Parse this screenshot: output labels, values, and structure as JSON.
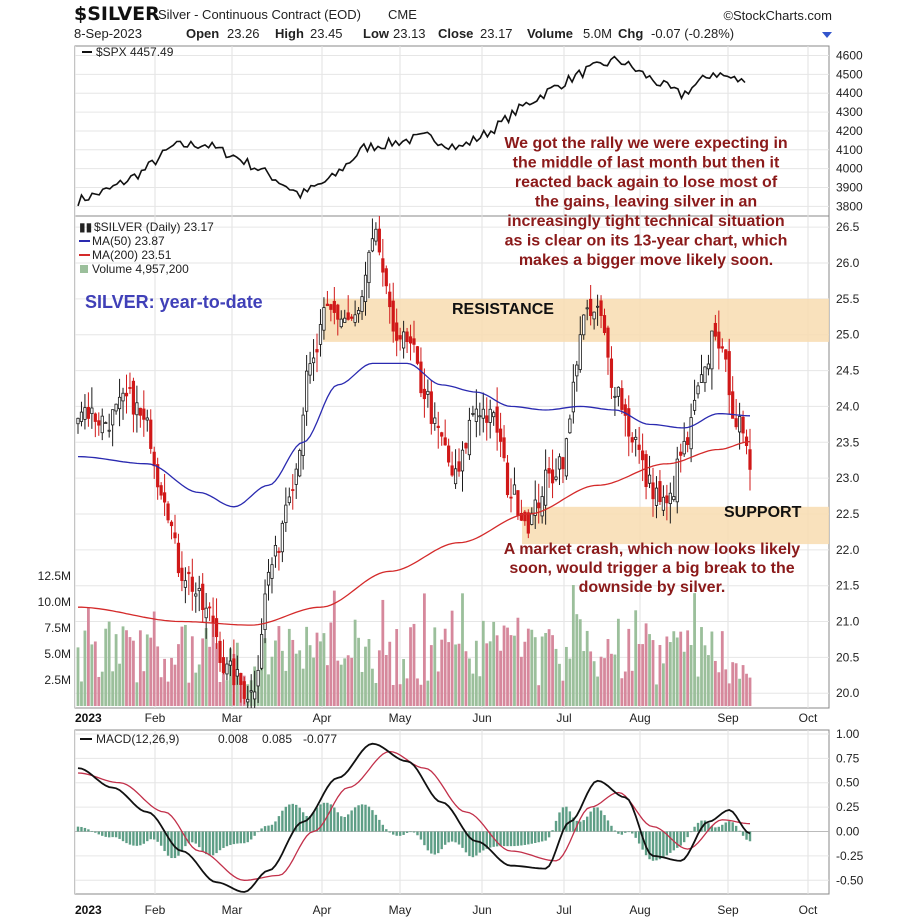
{
  "header": {
    "symbol": "$SILVER",
    "description": "Silver - Continuous Contract (EOD)",
    "exchange": "CME",
    "source": "©StockCharts.com",
    "date": "8-Sep-2023",
    "open_label": "Open",
    "open": "23.26",
    "high_label": "High",
    "high": "23.45",
    "low_label": "Low",
    "low": "23.13",
    "close_label": "Close",
    "close": "23.17",
    "volume_label": "Volume",
    "volume": "5.0M",
    "chg_label": "Chg",
    "chg": "-0.07 (-0.28%)"
  },
  "colors": {
    "up": "#1c1c1c",
    "down": "#d01818",
    "ma50": "#2a2ab0",
    "ma200": "#d42a2a",
    "vol_up": "#9bbf9b",
    "vol_down": "#d6889c",
    "zone": "#f8dcb0",
    "macd": "#111111",
    "signal": "#c2304a",
    "hist": "#5e9e86",
    "annotation": "#8b1a1a"
  },
  "annotations": {
    "top_note": [
      "We got the rally we were expecting in",
      "the middle of last month but then it",
      "reacted back again to lose most of",
      "the gains, leaving silver in an",
      "increasingly tight technical situation",
      "as is clear on its 13-year chart, which",
      "makes a bigger move likely soon."
    ],
    "bottom_note": [
      "A market crash, which now looks likely",
      "soon, would trigger a big break to the",
      "downside by silver."
    ],
    "resistance": "RESISTANCE",
    "support": "SUPPORT",
    "ytd": "SILVER: year-to-date"
  },
  "chart_data": [
    {
      "type": "line",
      "legend": "$SPX 4457.49",
      "y_ticks": [
        "4600",
        "4500",
        "4400",
        "4300",
        "4200",
        "4100",
        "4000",
        "3900",
        "3800"
      ],
      "ylim": [
        3770,
        4640
      ],
      "x": [
        "Jan 3",
        "Jan 10",
        "Jan 20",
        "Feb 1",
        "Feb 10",
        "Feb 20",
        "Mar 1",
        "Mar 13",
        "Mar 20",
        "Apr 1",
        "Apr 15",
        "May 1",
        "May 15",
        "Jun 1",
        "Jun 15",
        "Jul 1",
        "Jul 15",
        "Jul 27",
        "Aug 10",
        "Aug 20",
        "Sep 1",
        "Sep 8"
      ],
      "values": [
        3830,
        3890,
        3980,
        4120,
        4130,
        4060,
        3970,
        3860,
        3950,
        4110,
        4140,
        4170,
        4110,
        4200,
        4330,
        4430,
        4520,
        4580,
        4480,
        4390,
        4510,
        4457
      ]
    },
    {
      "type": "candlestick",
      "legend": {
        "price": "$SILVER (Daily) 23.17",
        "ma50": "MA(50) 23.87",
        "ma200": "MA(200) 23.51",
        "volume": "Volume 4,957,200"
      },
      "y_ticks": [
        "26.5",
        "26.0",
        "25.5",
        "25.0",
        "24.5",
        "24.0",
        "23.5",
        "23.0",
        "22.5",
        "22.0",
        "21.5",
        "21.0",
        "20.5",
        "20.0"
      ],
      "ylim": [
        19.85,
        26.6
      ],
      "volume_ticks": [
        "12.5M",
        "10.0M",
        "7.5M",
        "5.0M",
        "2.5M"
      ],
      "volume_max": 15000000,
      "resistance_zone": [
        24.9,
        25.5
      ],
      "support_zone": [
        22.08,
        22.6
      ],
      "waypoints": [
        [
          0,
          24.0
        ],
        [
          8,
          23.8
        ],
        [
          15,
          24.1
        ],
        [
          20,
          23.7
        ],
        [
          24,
          22.9
        ],
        [
          30,
          21.7
        ],
        [
          38,
          21.1
        ],
        [
          43,
          20.3
        ],
        [
          50,
          20.0
        ],
        [
          56,
          21.8
        ],
        [
          62,
          23.0
        ],
        [
          67,
          24.5
        ],
        [
          72,
          25.3
        ],
        [
          80,
          25.2
        ],
        [
          86,
          26.3
        ],
        [
          91,
          25.1
        ],
        [
          96,
          24.8
        ],
        [
          100,
          24.2
        ],
        [
          104,
          23.6
        ],
        [
          109,
          23.0
        ],
        [
          115,
          24.0
        ],
        [
          120,
          23.8
        ],
        [
          125,
          22.8
        ],
        [
          130,
          22.4
        ],
        [
          136,
          23.0
        ],
        [
          140,
          23.3
        ],
        [
          146,
          25.2
        ],
        [
          150,
          25.3
        ],
        [
          155,
          24.3
        ],
        [
          160,
          23.6
        ],
        [
          165,
          22.9
        ],
        [
          170,
          22.6
        ],
        [
          175,
          23.4
        ],
        [
          180,
          24.3
        ],
        [
          184,
          25.1
        ],
        [
          187,
          24.5
        ],
        [
          190,
          23.8
        ],
        [
          194,
          23.2
        ]
      ],
      "ma50": [
        [
          0,
          23.3
        ],
        [
          20,
          23.2
        ],
        [
          35,
          22.8
        ],
        [
          45,
          22.6
        ],
        [
          55,
          22.9
        ],
        [
          65,
          23.5
        ],
        [
          75,
          24.3
        ],
        [
          85,
          24.6
        ],
        [
          95,
          24.6
        ],
        [
          105,
          24.3
        ],
        [
          115,
          24.2
        ],
        [
          125,
          24.0
        ],
        [
          135,
          23.95
        ],
        [
          145,
          24.0
        ],
        [
          155,
          23.95
        ],
        [
          165,
          23.75
        ],
        [
          175,
          23.7
        ],
        [
          185,
          23.9
        ],
        [
          194,
          23.87
        ]
      ],
      "ma200": [
        [
          0,
          21.2
        ],
        [
          30,
          21.0
        ],
        [
          50,
          20.95
        ],
        [
          70,
          21.2
        ],
        [
          90,
          21.7
        ],
        [
          110,
          22.1
        ],
        [
          130,
          22.5
        ],
        [
          150,
          22.9
        ],
        [
          170,
          23.2
        ],
        [
          185,
          23.4
        ],
        [
          194,
          23.51
        ]
      ]
    },
    {
      "type": "line",
      "legend": {
        "label": "MACD(12,26,9)",
        "macd": "0.008",
        "signal": "0.085",
        "hist": "-0.077"
      },
      "y_ticks": [
        "1.00",
        "0.75",
        "0.50",
        "0.25",
        "0.00",
        "-0.25",
        "-0.50"
      ],
      "ylim": [
        -0.62,
        1.02
      ],
      "macd": [
        [
          0,
          0.65
        ],
        [
          10,
          0.45
        ],
        [
          20,
          0.2
        ],
        [
          30,
          -0.2
        ],
        [
          40,
          -0.52
        ],
        [
          48,
          -0.62
        ],
        [
          55,
          -0.4
        ],
        [
          65,
          0.1
        ],
        [
          75,
          0.55
        ],
        [
          85,
          0.9
        ],
        [
          95,
          0.72
        ],
        [
          105,
          0.3
        ],
        [
          115,
          -0.1
        ],
        [
          125,
          -0.35
        ],
        [
          135,
          -0.38
        ],
        [
          142,
          0.1
        ],
        [
          150,
          0.52
        ],
        [
          158,
          0.35
        ],
        [
          166,
          -0.25
        ],
        [
          174,
          -0.3
        ],
        [
          182,
          0.1
        ],
        [
          188,
          0.22
        ],
        [
          194,
          -0.02
        ]
      ],
      "signal": [
        [
          0,
          0.6
        ],
        [
          12,
          0.5
        ],
        [
          25,
          0.2
        ],
        [
          35,
          -0.2
        ],
        [
          48,
          -0.5
        ],
        [
          58,
          -0.45
        ],
        [
          68,
          0.0
        ],
        [
          78,
          0.45
        ],
        [
          90,
          0.82
        ],
        [
          100,
          0.65
        ],
        [
          112,
          0.2
        ],
        [
          125,
          -0.2
        ],
        [
          138,
          -0.3
        ],
        [
          148,
          0.25
        ],
        [
          156,
          0.4
        ],
        [
          166,
          0.05
        ],
        [
          176,
          -0.18
        ],
        [
          186,
          0.12
        ],
        [
          194,
          0.08
        ]
      ]
    }
  ],
  "x_axis": {
    "top": [
      "2023",
      "Feb",
      "Mar",
      "Apr",
      "May",
      "Jun",
      "Jul",
      "Aug",
      "Sep",
      "Oct"
    ],
    "bottom": [
      "2023",
      "Feb",
      "Mar",
      "Apr",
      "May",
      "Jun",
      "Jul",
      "Aug",
      "Sep",
      "Oct"
    ]
  }
}
